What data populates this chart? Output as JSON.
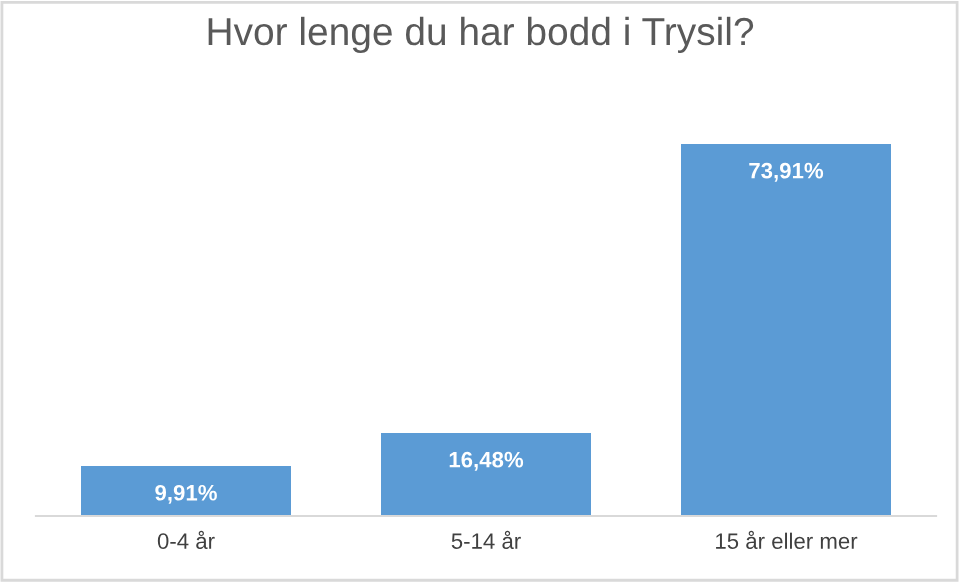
{
  "chart_data": {
    "type": "bar",
    "title": "Hvor lenge du har bodd i Trysil?",
    "categories": [
      "0-4 år",
      "5-14 år",
      "15 år eller mer"
    ],
    "values": [
      9.91,
      16.48,
      73.91
    ],
    "value_labels": [
      "9,91%",
      "16,48%",
      "73,91%"
    ],
    "color": "#5b9bd5"
  }
}
